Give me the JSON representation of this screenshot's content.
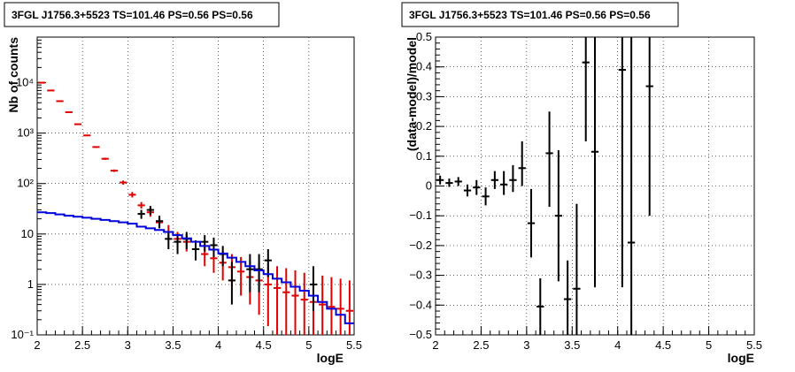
{
  "chart_data": [
    {
      "type": "scatter",
      "title": "3FGL J1756.3+5523 TS=101.46 PS=0.56 PS=0.56",
      "xlabel": "logE",
      "ylabel": "Nb of counts",
      "xlim": [
        2,
        5.5
      ],
      "ylim": [
        0.1,
        80000
      ],
      "y_scale": "log",
      "grid": true,
      "x_ticks": [
        {
          "v": 2,
          "label": "2"
        },
        {
          "v": 2.5,
          "label": "2.5"
        },
        {
          "v": 3,
          "label": "3"
        },
        {
          "v": 3.5,
          "label": "3.5"
        },
        {
          "v": 4,
          "label": "4"
        },
        {
          "v": 4.5,
          "label": "4.5"
        },
        {
          "v": 5,
          "label": "5"
        },
        {
          "v": 5.5,
          "label": "5.5"
        }
      ],
      "y_ticks": [
        {
          "v": 0.1,
          "label": "10⁻¹"
        },
        {
          "v": 1,
          "label": "1"
        },
        {
          "v": 10,
          "label": "10"
        },
        {
          "v": 100,
          "label": "10²"
        },
        {
          "v": 1000,
          "label": "10³"
        },
        {
          "v": 10000,
          "label": "10⁴"
        }
      ],
      "bin_width": 0.1,
      "series": [
        {
          "color": "#e00000",
          "style": "errorbar",
          "x": [
            2.05,
            2.15,
            2.25,
            2.35,
            2.45,
            2.55,
            2.65,
            2.75,
            2.85,
            2.95,
            3.05,
            3.15,
            3.25,
            3.35,
            3.45,
            3.55,
            3.65,
            3.75,
            3.85,
            3.95,
            4.05,
            4.15,
            4.25,
            4.35,
            4.45,
            4.55,
            4.65,
            4.75,
            4.85,
            4.95,
            5.05,
            5.15,
            5.25,
            5.35,
            5.45
          ],
          "y": [
            10000,
            7000,
            4300,
            2600,
            1500,
            900,
            530,
            310,
            180,
            105,
            60,
            37,
            27,
            17,
            11,
            8,
            7,
            5,
            4,
            3.3,
            2.7,
            2.2,
            1.8,
            1.4,
            1.2,
            1.0,
            0.85,
            0.7,
            0.6,
            0.5,
            0.45,
            0.4,
            0.36,
            0.33,
            0.3
          ],
          "y_low": [
            9800,
            6850,
            4200,
            2540,
            1460,
            870,
            510,
            295,
            170,
            95,
            53,
            32,
            22,
            13,
            8,
            5.5,
            4.5,
            3,
            2.3,
            1.7,
            1.2,
            0.9,
            0.6,
            0.4,
            0.25,
            0.15,
            0.1,
            0.1,
            0.1,
            0.1,
            0.1,
            0.1,
            0.1,
            0.1,
            0.1
          ],
          "y_high": [
            10200,
            7150,
            4400,
            2660,
            1540,
            930,
            550,
            325,
            190,
            115,
            68,
            43,
            33,
            22,
            15,
            11,
            10,
            7.5,
            6.2,
            5.3,
            4.6,
            4,
            3.5,
            3,
            2.8,
            2.6,
            2.3,
            2.1,
            1.9,
            1.7,
            1.6,
            1.5,
            1.4,
            1.3,
            1.2
          ]
        },
        {
          "color": "#000000",
          "style": "errorbar",
          "x": [
            3.15,
            3.25,
            3.35,
            3.45,
            3.55,
            3.65,
            3.75,
            3.85,
            3.95,
            4.05,
            4.15,
            4.35,
            4.45,
            4.55,
            5.05
          ],
          "y": [
            25,
            30,
            18,
            8,
            7,
            8,
            5,
            7,
            6,
            4,
            1.2,
            2,
            2,
            3,
            1
          ],
          "y_low": [
            20,
            24,
            13,
            5,
            4,
            5,
            3,
            4.5,
            3.5,
            2.3,
            0.4,
            0.7,
            0.7,
            1.4,
            0.3
          ],
          "y_high": [
            30,
            36,
            23,
            11,
            10,
            11,
            7.5,
            9.5,
            8.5,
            5.8,
            2.8,
            4,
            4,
            5,
            2.3
          ]
        },
        {
          "color": "#0000dd",
          "style": "step",
          "x": [
            2.0,
            2.1,
            2.2,
            2.3,
            2.4,
            2.5,
            2.6,
            2.7,
            2.8,
            2.9,
            3.0,
            3.1,
            3.2,
            3.3,
            3.4,
            3.5,
            3.6,
            3.7,
            3.8,
            3.9,
            4.0,
            4.1,
            4.2,
            4.3,
            4.4,
            4.5,
            4.6,
            4.7,
            4.8,
            4.9,
            5.0,
            5.1,
            5.2,
            5.3,
            5.4
          ],
          "y": [
            27,
            26,
            24.5,
            23,
            22,
            21,
            20,
            19,
            18,
            17,
            16,
            14,
            13,
            12,
            11,
            9.5,
            8.2,
            7,
            5.8,
            4.9,
            4.1,
            3.4,
            2.8,
            2.3,
            1.9,
            1.6,
            1.3,
            1.1,
            0.9,
            0.75,
            0.6,
            0.45,
            0.33,
            0.25,
            0.17
          ]
        }
      ]
    },
    {
      "type": "scatter",
      "title": "3FGL J1756.3+5523 TS=101.46 PS=0.56 PS=0.56",
      "xlabel": "logE",
      "ylabel": "(data-model)/model",
      "xlim": [
        2,
        5.5
      ],
      "ylim": [
        -0.5,
        0.5
      ],
      "grid": true,
      "x_ticks": [
        {
          "v": 2,
          "label": "2"
        },
        {
          "v": 2.5,
          "label": "2.5"
        },
        {
          "v": 3,
          "label": "3"
        },
        {
          "v": 3.5,
          "label": "3.5"
        },
        {
          "v": 4,
          "label": "4"
        },
        {
          "v": 4.5,
          "label": "4.5"
        },
        {
          "v": 5,
          "label": "5"
        },
        {
          "v": 5.5,
          "label": "5.5"
        }
      ],
      "y_ticks": [
        {
          "v": -0.5,
          "label": "−0.5"
        },
        {
          "v": -0.4,
          "label": "−0.4"
        },
        {
          "v": -0.3,
          "label": "−0.3"
        },
        {
          "v": -0.2,
          "label": "−0.2"
        },
        {
          "v": -0.1,
          "label": "−0.1"
        },
        {
          "v": 0,
          "label": "0"
        },
        {
          "v": 0.1,
          "label": "0.1"
        },
        {
          "v": 0.2,
          "label": "0.2"
        },
        {
          "v": 0.3,
          "label": "0.3"
        },
        {
          "v": 0.4,
          "label": "0.4"
        },
        {
          "v": 0.5,
          "label": "0.5"
        }
      ],
      "bin_width": 0.1,
      "series": [
        {
          "color": "#000000",
          "style": "errorbar",
          "x": [
            2.05,
            2.15,
            2.25,
            2.35,
            2.45,
            2.55,
            2.65,
            2.75,
            2.85,
            2.95,
            3.05,
            3.15,
            3.25,
            3.35,
            3.45,
            3.55,
            3.65,
            3.75,
            4.05,
            4.15,
            4.35
          ],
          "y": [
            0.02,
            0.01,
            0.015,
            -0.015,
            -0.005,
            -0.035,
            0.02,
            0.005,
            0.02,
            0.06,
            -0.125,
            -0.405,
            0.11,
            -0.1,
            -0.38,
            -0.345,
            0.415,
            0.115,
            0.39,
            -0.19,
            0.335
          ],
          "y_low": [
            0.005,
            -0.003,
            0.0,
            -0.035,
            -0.03,
            -0.065,
            -0.01,
            -0.03,
            -0.02,
            0.0,
            -0.24,
            -0.5,
            -0.07,
            -0.32,
            -0.5,
            -0.5,
            0.15,
            -0.34,
            -0.34,
            -0.5,
            -0.1
          ],
          "y_high": [
            0.035,
            0.025,
            0.03,
            0.005,
            0.02,
            -0.005,
            0.05,
            0.05,
            0.07,
            0.15,
            -0.01,
            -0.31,
            0.25,
            0.12,
            -0.25,
            -0.06,
            0.5,
            0.5,
            0.5,
            0.5,
            0.5
          ]
        }
      ]
    }
  ]
}
